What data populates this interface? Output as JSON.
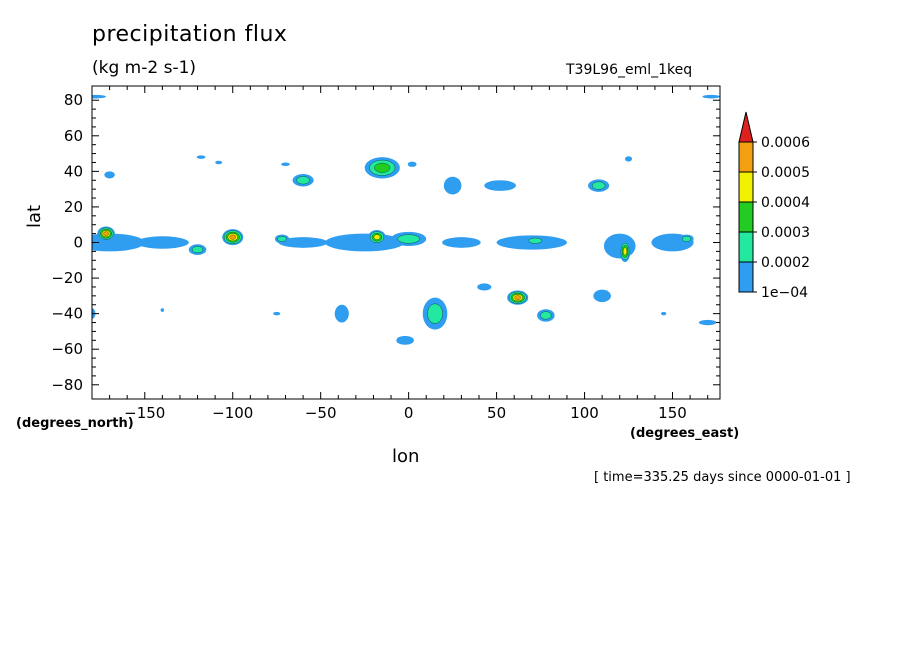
{
  "title": "precipitation flux",
  "units": "(kg m-2 s-1)",
  "run_name": "T39L96_eml_1keq",
  "timestamp": "[ time=335.25 days since 0000-01-01 ]",
  "chart_data": {
    "type": "heatmap",
    "title": "precipitation flux",
    "xlabel": "lon",
    "ylabel": "lat",
    "xunit": "(degrees_east)",
    "yunit": "(degrees_north)",
    "xlim": [
      -180,
      177
    ],
    "ylim": [
      -88,
      88
    ],
    "xticks": [
      -150,
      -100,
      -50,
      0,
      50,
      100,
      150
    ],
    "yticks": [
      80,
      60,
      40,
      20,
      0,
      -20,
      -40,
      -60,
      -80
    ],
    "colorbar": {
      "levels": [
        "1e-04",
        "0.0002",
        "0.0003",
        "0.0004",
        "0.0005",
        "0.0006"
      ],
      "colors": [
        "#2f9df0",
        "#22e8a0",
        "#22cc22",
        "#f0f000",
        "#f2a010",
        "#e02020"
      ]
    },
    "features": [
      {
        "lon": -178,
        "lat": 82,
        "w": 12,
        "h": 2,
        "max_level": 1
      },
      {
        "lon": 172,
        "lat": 82,
        "w": 10,
        "h": 2,
        "max_level": 1
      },
      {
        "lon": -170,
        "lat": 38,
        "w": 6,
        "h": 4,
        "max_level": 1
      },
      {
        "lon": -118,
        "lat": 48,
        "w": 5,
        "h": 2,
        "max_level": 1
      },
      {
        "lon": -108,
        "lat": 45,
        "w": 4,
        "h": 2,
        "max_level": 1
      },
      {
        "lon": -70,
        "lat": 44,
        "w": 5,
        "h": 2,
        "max_level": 1
      },
      {
        "lon": -60,
        "lat": 35,
        "w": 12,
        "h": 7,
        "max_level": 2
      },
      {
        "lon": -15,
        "lat": 42,
        "w": 20,
        "h": 12,
        "max_level": 3
      },
      {
        "lon": 2,
        "lat": 44,
        "w": 5,
        "h": 3,
        "max_level": 1
      },
      {
        "lon": 25,
        "lat": 32,
        "w": 10,
        "h": 10,
        "max_level": 1
      },
      {
        "lon": 52,
        "lat": 32,
        "w": 18,
        "h": 6,
        "max_level": 1
      },
      {
        "lon": 108,
        "lat": 32,
        "w": 12,
        "h": 7,
        "max_level": 2
      },
      {
        "lon": 125,
        "lat": 47,
        "w": 4,
        "h": 3,
        "max_level": 1
      },
      {
        "lon": -170,
        "lat": 0,
        "w": 40,
        "h": 10,
        "max_level": 1
      },
      {
        "lon": -172,
        "lat": 5,
        "w": 10,
        "h": 8,
        "max_level": 5
      },
      {
        "lon": -100,
        "lat": 3,
        "w": 12,
        "h": 9,
        "max_level": 5
      },
      {
        "lon": -140,
        "lat": 0,
        "w": 30,
        "h": 7,
        "max_level": 1
      },
      {
        "lon": -120,
        "lat": -4,
        "w": 10,
        "h": 6,
        "max_level": 2
      },
      {
        "lon": -60,
        "lat": 0,
        "w": 28,
        "h": 6,
        "max_level": 1
      },
      {
        "lon": -72,
        "lat": 2,
        "w": 8,
        "h": 5,
        "max_level": 2
      },
      {
        "lon": -25,
        "lat": 0,
        "w": 45,
        "h": 10,
        "max_level": 1
      },
      {
        "lon": -18,
        "lat": 3,
        "w": 10,
        "h": 8,
        "max_level": 4
      },
      {
        "lon": 0,
        "lat": 2,
        "w": 20,
        "h": 8,
        "max_level": 2
      },
      {
        "lon": 30,
        "lat": 0,
        "w": 22,
        "h": 6,
        "max_level": 1
      },
      {
        "lon": 70,
        "lat": 0,
        "w": 40,
        "h": 8,
        "max_level": 1
      },
      {
        "lon": 72,
        "lat": 1,
        "w": 12,
        "h": 5,
        "max_level": 2
      },
      {
        "lon": 120,
        "lat": -2,
        "w": 18,
        "h": 14,
        "max_level": 1
      },
      {
        "lon": 123,
        "lat": -5,
        "w": 6,
        "h": 12,
        "max_level": 4
      },
      {
        "lon": 150,
        "lat": 0,
        "w": 24,
        "h": 10,
        "max_level": 1
      },
      {
        "lon": 158,
        "lat": 2,
        "w": 8,
        "h": 5,
        "max_level": 2
      },
      {
        "lon": -180,
        "lat": -40,
        "w": 4,
        "h": 6,
        "max_level": 1
      },
      {
        "lon": -140,
        "lat": -38,
        "w": 2,
        "h": 2,
        "max_level": 1
      },
      {
        "lon": -75,
        "lat": -40,
        "w": 4,
        "h": 2,
        "max_level": 1
      },
      {
        "lon": -38,
        "lat": -40,
        "w": 8,
        "h": 10,
        "max_level": 1
      },
      {
        "lon": 15,
        "lat": -40,
        "w": 14,
        "h": 18,
        "max_level": 2
      },
      {
        "lon": -2,
        "lat": -55,
        "w": 10,
        "h": 5,
        "max_level": 1
      },
      {
        "lon": 43,
        "lat": -25,
        "w": 8,
        "h": 4,
        "max_level": 1
      },
      {
        "lon": 62,
        "lat": -31,
        "w": 12,
        "h": 8,
        "max_level": 5
      },
      {
        "lon": 78,
        "lat": -41,
        "w": 10,
        "h": 7,
        "max_level": 2
      },
      {
        "lon": 110,
        "lat": -30,
        "w": 10,
        "h": 7,
        "max_level": 1
      },
      {
        "lon": 170,
        "lat": -45,
        "w": 10,
        "h": 3,
        "max_level": 1
      },
      {
        "lon": 145,
        "lat": -40,
        "w": 3,
        "h": 2,
        "max_level": 1
      }
    ]
  }
}
